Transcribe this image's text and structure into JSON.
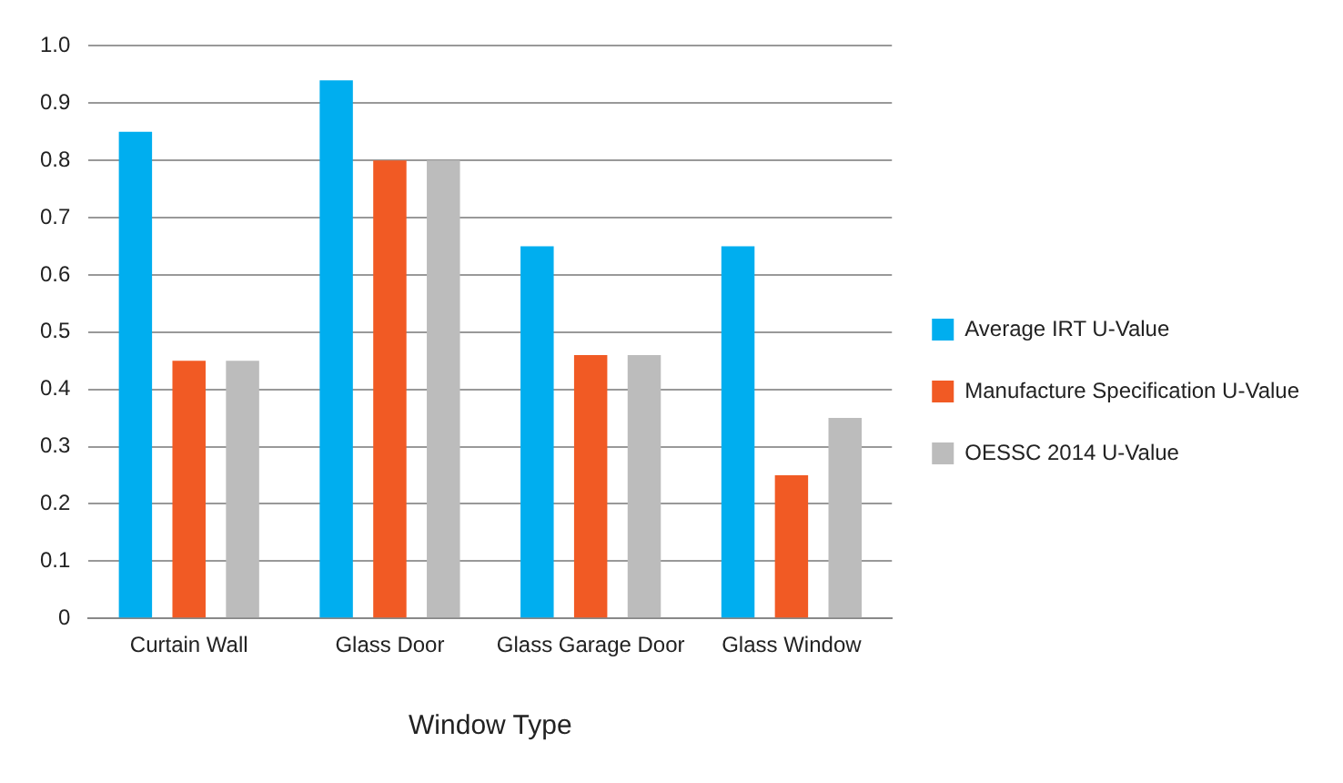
{
  "chart_data": {
    "type": "bar",
    "xlabel": "Window Type",
    "categories": [
      "Curtain Wall",
      "Glass Door",
      "Glass Garage Door",
      "Glass Window"
    ],
    "series": [
      {
        "name": "Average IRT U-Value",
        "color": "#00aeef",
        "values": [
          0.85,
          0.94,
          0.65,
          0.65
        ]
      },
      {
        "name": "Manufacture Specification U-Value",
        "color": "#f15a24",
        "values": [
          0.45,
          0.8,
          0.46,
          0.25
        ]
      },
      {
        "name": "OESSC 2014 U-Value",
        "color": "#bcbcbc",
        "values": [
          0.45,
          0.8,
          0.46,
          0.35
        ]
      }
    ],
    "ylim": [
      0,
      1
    ],
    "yticks": [
      0,
      0.1,
      0.2,
      0.3,
      0.4,
      0.5,
      0.6,
      0.7,
      0.8,
      0.9,
      {
        "value": 1,
        "label": "1.0"
      }
    ],
    "grid": "y",
    "legend": "right"
  }
}
